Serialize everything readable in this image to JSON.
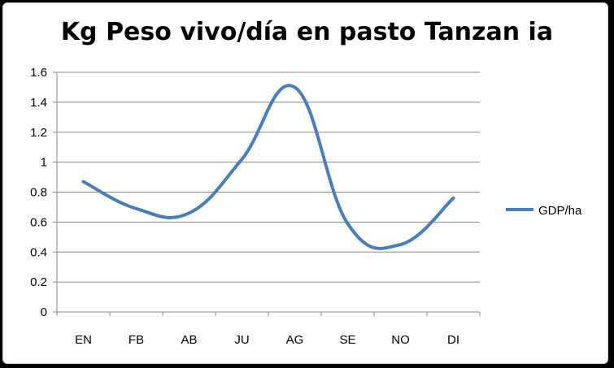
{
  "chart_data": {
    "type": "line",
    "title": "Kg Peso vivo/día en pasto Tanzan ia",
    "categories": [
      "EN",
      "FB",
      "AB",
      "JU",
      "AG",
      "SE",
      "NO",
      "DI"
    ],
    "series": [
      {
        "name": "GDP/ha",
        "values": [
          0.87,
          0.69,
          0.66,
          1.02,
          1.5,
          0.59,
          0.45,
          0.76
        ],
        "color": "#4a7ebb"
      }
    ],
    "yticks": [
      "0",
      "0.2",
      "0.4",
      "0.6",
      "0.8",
      "1",
      "1.2",
      "1.4",
      "1.6"
    ],
    "ylim": [
      0,
      1.6
    ],
    "smooth": true,
    "grid": true,
    "legend": "right"
  }
}
